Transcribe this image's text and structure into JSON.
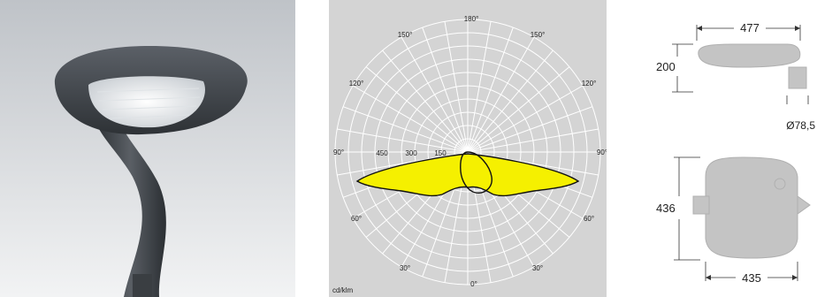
{
  "photo": {
    "description_icon": "street-lamp-photo"
  },
  "polar_diagram": {
    "angle_labels": {
      "top": "180°",
      "top_left": "150°",
      "top_right": "150°",
      "upper_left": "120°",
      "upper_right": "120°",
      "left": "90°",
      "right": "90°",
      "lower_left": "60°",
      "lower_right": "60°",
      "bottom_left": "30°",
      "bottom_right": "30°",
      "bottom": "0°"
    },
    "radial_labels": [
      "450",
      "300",
      "150"
    ],
    "unit": "cd/klm",
    "colors": {
      "background": "#d4d4d4",
      "grid": "#ffffff",
      "fill": "#f5f000",
      "outline": "#111111"
    }
  },
  "dimensions": {
    "side_width": "477",
    "side_height": "200",
    "pole_diameter": "Ø78,5",
    "top_height": "436",
    "top_width": "435",
    "colors": {
      "body": "#c4c4c4",
      "line": "#333333"
    }
  }
}
